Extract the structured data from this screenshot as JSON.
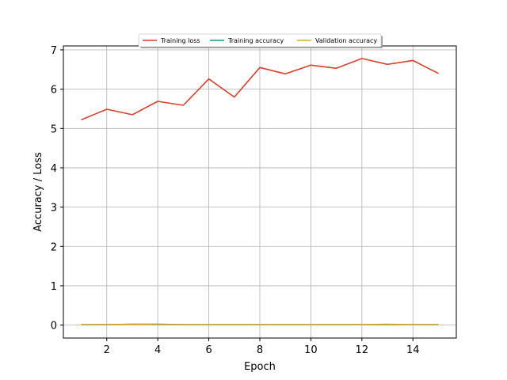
{
  "chart_data": {
    "type": "line",
    "title": "",
    "xlabel": "Epoch",
    "ylabel": "Accuracy / Loss",
    "xlim": [
      0.3,
      15.7
    ],
    "ylim": [
      -0.33,
      7.1
    ],
    "x_ticks": [
      2,
      4,
      6,
      8,
      10,
      12,
      14
    ],
    "y_ticks": [
      0,
      1,
      2,
      3,
      4,
      5,
      6,
      7
    ],
    "grid": true,
    "legend_position": "top-center",
    "x": [
      1,
      2,
      3,
      4,
      5,
      6,
      7,
      8,
      9,
      10,
      11,
      12,
      13,
      14,
      15
    ],
    "series": [
      {
        "name": "Training loss",
        "color": "#d9402b",
        "values": [
          5.22,
          5.49,
          5.35,
          5.69,
          5.59,
          6.26,
          5.8,
          6.55,
          6.39,
          6.61,
          6.53,
          6.78,
          6.63,
          6.73,
          6.4
        ]
      },
      {
        "name": "Training accuracy",
        "color": "#0f9e8a",
        "values": [
          0.01,
          0.01,
          0.02,
          0.02,
          0.01,
          0.01,
          0.01,
          0.01,
          0.01,
          0.01,
          0.01,
          0.01,
          0.01,
          0.01,
          0.01
        ]
      },
      {
        "name": "Validation accuracy",
        "color": "#e0a534",
        "values": [
          0.01,
          0.01,
          0.02,
          0.01,
          0.01,
          0.01,
          0.01,
          0.01,
          0.01,
          0.01,
          0.01,
          0.01,
          0.02,
          0.01,
          0.01
        ]
      }
    ]
  }
}
